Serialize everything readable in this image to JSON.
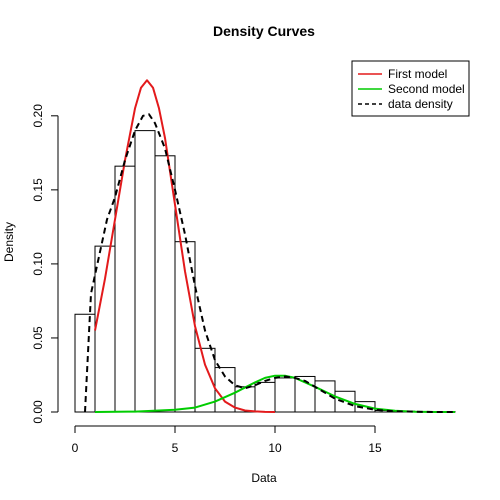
{
  "chart_data": {
    "type": "bar",
    "title": "Density Curves",
    "xlabel": "Data",
    "ylabel": "Density",
    "xlim": [
      0,
      19
    ],
    "ylim": [
      0,
      0.21
    ],
    "x_ticks": [
      0,
      5,
      10,
      15
    ],
    "x_tick_labels": [
      "0",
      "5",
      "10",
      "15"
    ],
    "y_ticks": [
      0,
      0.05,
      0.1,
      0.15,
      0.2
    ],
    "y_tick_labels": [
      "0.00",
      "0.05",
      "0.10",
      "0.15",
      "0.20"
    ],
    "grid": false,
    "legend_position": "top-right",
    "histogram": {
      "bin_edges": [
        0,
        1,
        2,
        3,
        4,
        5,
        6,
        7,
        8,
        9,
        10,
        11,
        12,
        13,
        14,
        15,
        16,
        17,
        18,
        19
      ],
      "densities": [
        0.066,
        0.112,
        0.166,
        0.19,
        0.173,
        0.115,
        0.043,
        0.03,
        0.017,
        0.02,
        0.023,
        0.024,
        0.021,
        0.014,
        0.007,
        0.001,
        0.0005,
        0.0003,
        0.0002
      ]
    },
    "series": [
      {
        "name": "First model",
        "color": "#e31a1c",
        "style": "solid",
        "x": [
          1.0,
          1.5,
          2.0,
          2.5,
          3.0,
          3.3,
          3.6,
          3.9,
          4.2,
          4.5,
          5.0,
          5.5,
          6.0,
          6.5,
          7.0,
          7.5,
          8.0,
          8.5,
          9.0,
          9.5,
          10.0
        ],
        "y": [
          0.055,
          0.09,
          0.13,
          0.17,
          0.205,
          0.219,
          0.224,
          0.219,
          0.205,
          0.185,
          0.14,
          0.095,
          0.058,
          0.032,
          0.016,
          0.007,
          0.003,
          0.001,
          0.0004,
          0.0001,
          0.0
        ]
      },
      {
        "name": "Second model",
        "color": "#00cc00",
        "style": "solid",
        "x": [
          1.0,
          3.0,
          5.0,
          6.0,
          7.0,
          8.0,
          9.0,
          9.5,
          10.0,
          10.5,
          11.0,
          11.5,
          12.0,
          13.0,
          14.0,
          15.0,
          16.0,
          17.0,
          18.0,
          19.0
        ],
        "y": [
          0.0,
          0.0003,
          0.0015,
          0.003,
          0.007,
          0.013,
          0.02,
          0.023,
          0.0245,
          0.0245,
          0.023,
          0.02,
          0.017,
          0.0105,
          0.0055,
          0.0023,
          0.0008,
          0.0002,
          0.0,
          0.0
        ]
      },
      {
        "name": "data density",
        "color": "#000000",
        "style": "dashed",
        "x": [
          0.5,
          0.8,
          1.2,
          1.6,
          2.0,
          2.5,
          3.0,
          3.4,
          3.7,
          4.0,
          4.5,
          5.0,
          5.5,
          6.0,
          6.5,
          7.0,
          7.5,
          8.0,
          8.5,
          9.0,
          9.5,
          10.0,
          10.5,
          11.0,
          11.5,
          12.0,
          12.5,
          13.0,
          14.0,
          15.0,
          16.0,
          17.0,
          18.0,
          19.0
        ],
        "y": [
          0.0,
          0.08,
          0.105,
          0.13,
          0.145,
          0.17,
          0.19,
          0.2,
          0.201,
          0.195,
          0.178,
          0.15,
          0.12,
          0.085,
          0.055,
          0.035,
          0.024,
          0.018,
          0.016,
          0.018,
          0.021,
          0.023,
          0.024,
          0.023,
          0.021,
          0.017,
          0.013,
          0.009,
          0.004,
          0.0015,
          0.0005,
          0.0002,
          0.0,
          0.0
        ]
      }
    ]
  }
}
